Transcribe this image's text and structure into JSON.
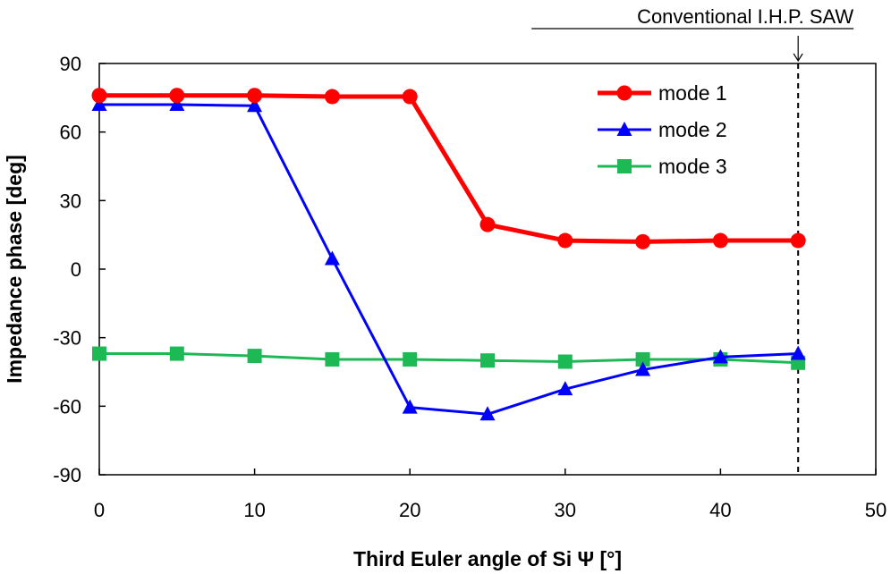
{
  "chart_data": {
    "type": "line",
    "title": "",
    "xlabel": "Third Euler angle of Si Ψ [°]",
    "ylabel": "Impedance phase [deg]",
    "xlim": [
      0,
      50
    ],
    "ylim": [
      -90,
      90
    ],
    "xticks": [
      0,
      10,
      20,
      30,
      40,
      50
    ],
    "yticks": [
      -90,
      -60,
      -30,
      0,
      30,
      60,
      90
    ],
    "grid": false,
    "legend_position": "top-right",
    "series": [
      {
        "name": "mode 1",
        "color": "#ff0000",
        "marker": "circle",
        "x": [
          0,
          5,
          10,
          15,
          20,
          25,
          30,
          35,
          40,
          45
        ],
        "y": [
          76,
          76,
          76,
          75.5,
          75.5,
          19.5,
          12.5,
          12,
          12.5,
          12.5
        ]
      },
      {
        "name": "mode 2",
        "color": "#0000ff",
        "marker": "triangle",
        "x": [
          0,
          5,
          10,
          15,
          20,
          25,
          30,
          35,
          40,
          45
        ],
        "y": [
          72,
          72,
          71.5,
          4.5,
          -60.5,
          -63.5,
          -52.5,
          -44,
          -38.5,
          -37
        ]
      },
      {
        "name": "mode 3",
        "color": "#1db954",
        "marker": "square",
        "x": [
          0,
          5,
          10,
          15,
          20,
          25,
          30,
          35,
          40,
          45
        ],
        "y": [
          -37,
          -37,
          -38,
          -39.5,
          -39.5,
          -40,
          -40.5,
          -39.5,
          -39.5,
          -41
        ]
      }
    ],
    "annotation": {
      "text": "Conventional I.H.P. SAW",
      "x": 45
    }
  }
}
